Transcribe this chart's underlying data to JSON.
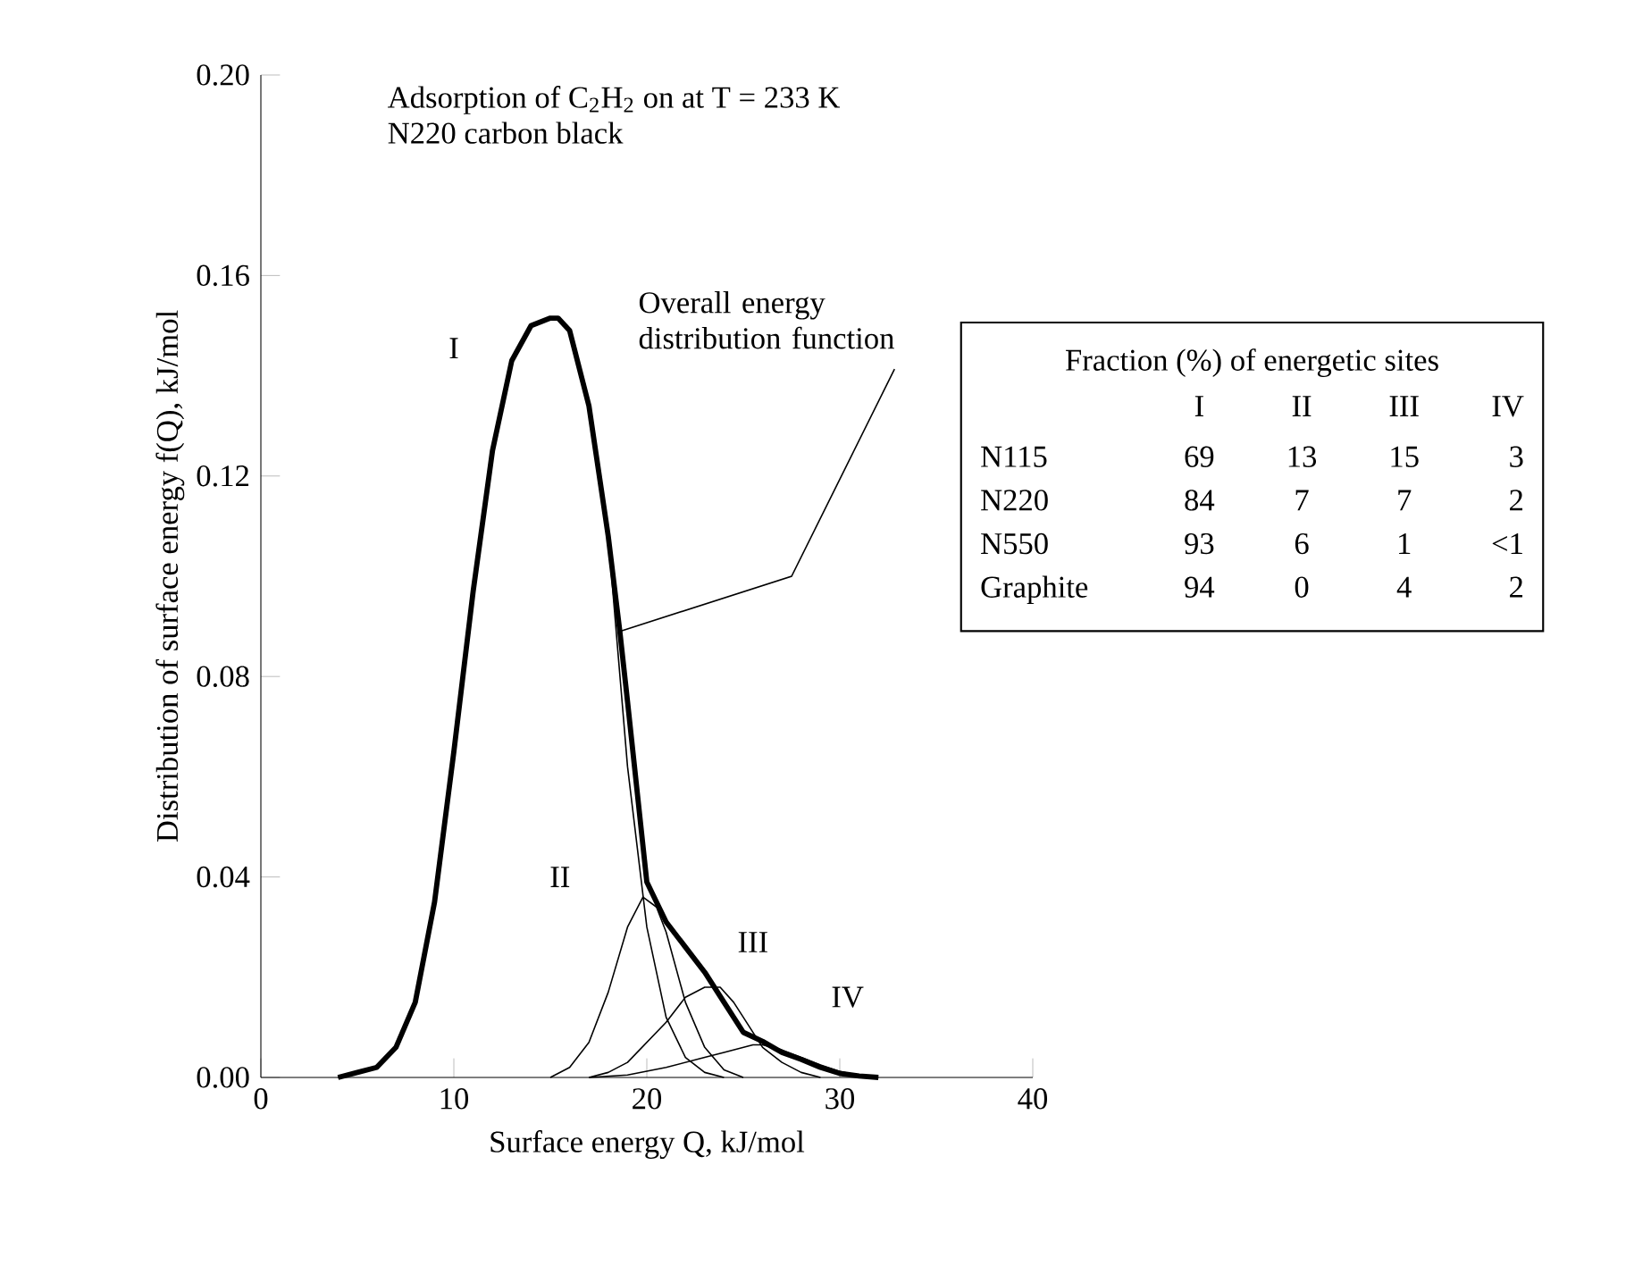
{
  "chart_data": {
    "type": "line",
    "title": "Adsorption of C$_{2}$H$_{2}$ on at T = 233 K",
    "subtitle": "N220 carbon black",
    "xlabel": "Surface energy Q, kJ/mol",
    "ylabel": "Distribution of surface energy f(Q), kJ/mol",
    "xlim": [
      0,
      40
    ],
    "xticks": [
      0,
      10,
      20,
      30,
      40
    ],
    "ylim": [
      0,
      0.2
    ],
    "yticks": [
      {
        "value": 0,
        "label": "0.00"
      },
      {
        "value": 0.04,
        "label": "0.04"
      },
      {
        "value": 0.08,
        "label": "0.08"
      },
      {
        "value": 0.12,
        "label": "0.12"
      },
      {
        "value": 0.16,
        "label": "0.16"
      },
      {
        "value": 0.2,
        "label": "0.20"
      }
    ],
    "series": [
      {
        "color": "#000000",
        "x": [
          4,
          5,
          6,
          7,
          8,
          9,
          10,
          11,
          12,
          13,
          14,
          15,
          15.4,
          16,
          17,
          18,
          18.6,
          19,
          20,
          21,
          22,
          23,
          24,
          25,
          26,
          27,
          28,
          29,
          30,
          31,
          32
        ],
        "values": [
          0,
          0.001,
          0.002,
          0.006,
          0.015,
          0.035,
          0.065,
          0.097,
          0.125,
          0.143,
          0.15,
          0.1515,
          0.1515,
          0.149,
          0.134,
          0.108,
          0.089,
          0.075,
          0.039,
          0.031,
          0.026,
          0.021,
          0.015,
          0.009,
          0.0072,
          0.005,
          0.0036,
          0.002,
          0.0008,
          0.0003,
          0
        ]
      },
      {
        "name": "I",
        "color": "#000000",
        "x": [
          4,
          5,
          6,
          7,
          8,
          9,
          10,
          11,
          12,
          13,
          14,
          15,
          15.4,
          16,
          17,
          18,
          19,
          20,
          21,
          22,
          23,
          24
        ],
        "values": [
          0,
          0.001,
          0.002,
          0.006,
          0.015,
          0.035,
          0.065,
          0.097,
          0.125,
          0.143,
          0.15,
          0.1515,
          0.1515,
          0.149,
          0.134,
          0.108,
          0.062,
          0.03,
          0.012,
          0.004,
          0.001,
          0
        ]
      },
      {
        "name": "II",
        "color": "#000000",
        "x": [
          15,
          16,
          17,
          18,
          19,
          19.8,
          20.5,
          21,
          22,
          23,
          24,
          25
        ],
        "values": [
          0,
          0.002,
          0.007,
          0.017,
          0.03,
          0.036,
          0.034,
          0.029,
          0.015,
          0.006,
          0.0015,
          0
        ]
      },
      {
        "name": "III",
        "color": "#000000",
        "x": [
          17,
          18,
          19,
          20,
          21,
          22,
          23,
          23.8,
          24.5,
          25,
          26,
          27,
          28,
          29
        ],
        "values": [
          0,
          0.001,
          0.003,
          0.007,
          0.011,
          0.016,
          0.018,
          0.018,
          0.015,
          0.012,
          0.006,
          0.003,
          0.001,
          0
        ]
      },
      {
        "name": "IV",
        "color": "#000000",
        "x": [
          17,
          19,
          21,
          23,
          24,
          25,
          25.5,
          26,
          27,
          28,
          29,
          30,
          31,
          32
        ],
        "values": [
          0,
          0.0005,
          0.002,
          0.004,
          0.005,
          0.006,
          0.0065,
          0.0065,
          0.0055,
          0.004,
          0.0025,
          0.0012,
          0.0004,
          0
        ]
      }
    ],
    "annotations": [
      {
        "text": "Overall energy distribution function",
        "x": 18.6,
        "y": 0.089
      },
      "Fraction (%) of energetic sites",
      "I",
      "II",
      "III",
      "IV",
      "N115",
      "69",
      "13",
      "15",
      "3",
      "N220",
      "84",
      "7",
      "7",
      "2",
      "N550",
      "93",
      "6",
      "1",
      "<1",
      "Graphite",
      "94",
      "0",
      "4",
      "2"
    ]
  }
}
